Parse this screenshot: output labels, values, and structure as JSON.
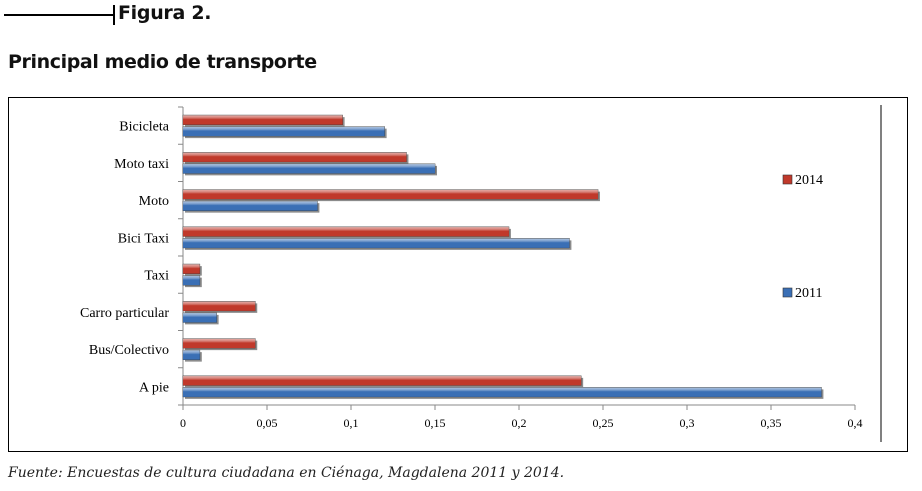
{
  "figure_label": "Figura 2.",
  "source_note": "Fuente: Encuestas de cultura ciudadana en Ciénaga, Magdalena 2011 y 2014.",
  "chart_data": {
    "type": "bar",
    "orientation": "horizontal",
    "title": "Principal medio de transporte",
    "categories": [
      "Bicicleta",
      "Moto taxi",
      "Moto",
      "Bici Taxi",
      "Taxi",
      "Carro particular",
      "Bus/Colectivo",
      "A pie"
    ],
    "series": [
      {
        "name": "2014",
        "color": "#c0392b",
        "values": [
          0.095,
          0.133,
          0.247,
          0.194,
          0.01,
          0.043,
          0.043,
          0.237
        ]
      },
      {
        "name": "2011",
        "color": "#3a6fb5",
        "values": [
          0.12,
          0.15,
          0.08,
          0.23,
          0.01,
          0.02,
          0.01,
          0.38
        ]
      }
    ],
    "xlim": [
      0,
      0.4
    ],
    "xticks": [
      "0",
      "0,05",
      "0,1",
      "0,15",
      "0,2",
      "0,25",
      "0,3",
      "0,35",
      "0,4"
    ],
    "grid": false,
    "legend_position": "right"
  }
}
